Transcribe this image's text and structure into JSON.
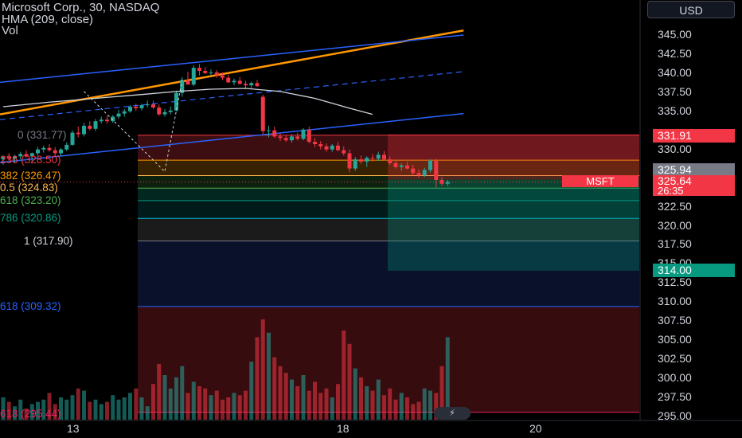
{
  "header": {
    "symbol_line": "Microsoft Corp., 30, NASDAQ",
    "indicator_1": "HMA (209, close)",
    "indicator_2": "Vol"
  },
  "currency_button": "USD",
  "price_axis": {
    "ticks": [
      "345.00",
      "342.50",
      "340.00",
      "337.50",
      "335.00",
      "330.00",
      "327.50",
      "322.50",
      "320.00",
      "317.50",
      "315.00",
      "312.50",
      "310.00",
      "307.50",
      "305.00",
      "302.50",
      "300.00",
      "297.50",
      "295.00"
    ]
  },
  "badges": {
    "upper": "331.91",
    "gray": "325.94",
    "last_price": "325.64",
    "countdown": "26:35",
    "lower": "314.00"
  },
  "symbol_badge": "MSFT",
  "fib_labels": [
    "0 (331.77)",
    "236 (328.50)",
    "382 (326.47)",
    "0.5 (324.83)",
    "618 (323.20)",
    "786 (320.86)",
    "1 (317.90)",
    "618 (309.32)",
    "618 (295.44)"
  ],
  "time_axis": [
    "13",
    "18",
    "20"
  ],
  "colors": {
    "up": "#26a69a",
    "down": "#f23645",
    "channel": "#2962ff",
    "channel_top": "#ff9800",
    "hma": "#d1d4dc"
  },
  "chart_data": {
    "type": "candlestick",
    "title": "Microsoft Corp., 30, NASDAQ",
    "ylim": [
      294.5,
      347.5
    ],
    "x_ticks": [
      "13",
      "18",
      "20"
    ],
    "candles": [
      [
        328.6,
        329.1,
        327.9,
        328.9
      ],
      [
        328.9,
        329.4,
        328.4,
        328.7
      ],
      [
        328.7,
        329.2,
        328.1,
        329.0
      ],
      [
        329.0,
        329.6,
        328.6,
        329.3
      ],
      [
        329.3,
        329.8,
        328.9,
        329.0
      ],
      [
        329.0,
        329.5,
        328.3,
        329.4
      ],
      [
        329.4,
        330.2,
        329.1,
        329.9
      ],
      [
        329.9,
        330.4,
        329.5,
        330.1
      ],
      [
        330.1,
        330.6,
        329.6,
        329.8
      ],
      [
        329.8,
        330.2,
        329.0,
        329.4
      ],
      [
        329.4,
        330.1,
        329.0,
        329.9
      ],
      [
        329.9,
        330.8,
        329.7,
        330.5
      ],
      [
        330.5,
        332.4,
        330.4,
        332.1
      ],
      [
        332.1,
        332.9,
        331.5,
        331.9
      ],
      [
        331.9,
        333.4,
        331.6,
        333.0
      ],
      [
        333.0,
        333.6,
        332.4,
        332.6
      ],
      [
        332.6,
        333.9,
        332.3,
        333.6
      ],
      [
        333.6,
        334.2,
        333.3,
        333.8
      ],
      [
        333.8,
        334.3,
        333.3,
        333.6
      ],
      [
        333.6,
        334.4,
        333.4,
        334.2
      ],
      [
        334.2,
        335.1,
        333.9,
        334.6
      ],
      [
        334.6,
        335.2,
        334.2,
        334.9
      ],
      [
        334.9,
        335.7,
        334.7,
        335.5
      ],
      [
        335.5,
        335.9,
        335.0,
        335.3
      ],
      [
        335.3,
        335.9,
        335.0,
        335.7
      ],
      [
        335.7,
        336.3,
        335.4,
        335.8
      ],
      [
        335.8,
        336.3,
        335.2,
        335.4
      ],
      [
        335.4,
        335.8,
        334.3,
        334.5
      ],
      [
        334.5,
        335.2,
        334.2,
        334.8
      ],
      [
        334.8,
        335.5,
        334.5,
        335.0
      ],
      [
        335.0,
        337.6,
        334.9,
        337.3
      ],
      [
        337.3,
        339.4,
        336.8,
        339.0
      ],
      [
        339.0,
        340.1,
        338.6,
        338.4
      ],
      [
        338.4,
        340.9,
        338.2,
        340.6
      ],
      [
        340.6,
        341.1,
        339.6,
        340.2
      ],
      [
        340.2,
        340.7,
        339.8,
        339.9
      ],
      [
        339.9,
        340.4,
        339.6,
        340.0
      ],
      [
        340.0,
        340.3,
        339.3,
        339.6
      ],
      [
        339.6,
        340.0,
        339.0,
        339.3
      ],
      [
        339.3,
        339.7,
        338.6,
        338.7
      ],
      [
        338.7,
        339.2,
        338.3,
        338.9
      ],
      [
        338.9,
        339.4,
        338.4,
        338.5
      ],
      [
        338.5,
        338.9,
        337.9,
        338.3
      ],
      [
        338.3,
        338.8,
        337.9,
        338.6
      ],
      [
        338.6,
        339.0,
        338.1,
        338.2
      ],
      [
        336.8,
        337.1,
        331.9,
        332.3
      ],
      [
        332.3,
        333.0,
        331.5,
        332.4
      ],
      [
        332.4,
        332.9,
        331.4,
        331.6
      ],
      [
        331.6,
        332.0,
        331.0,
        331.4
      ],
      [
        331.4,
        331.8,
        330.9,
        331.1
      ],
      [
        331.1,
        331.9,
        330.8,
        331.6
      ],
      [
        331.6,
        332.1,
        331.1,
        331.3
      ],
      [
        331.3,
        332.7,
        331.1,
        332.5
      ],
      [
        332.5,
        332.9,
        330.7,
        330.9
      ],
      [
        330.9,
        331.4,
        330.2,
        330.6
      ],
      [
        330.6,
        331.0,
        329.9,
        330.3
      ],
      [
        330.3,
        330.7,
        329.6,
        329.9
      ],
      [
        329.9,
        330.6,
        329.6,
        330.4
      ],
      [
        330.4,
        330.9,
        329.7,
        329.8
      ],
      [
        329.8,
        330.3,
        329.1,
        329.4
      ],
      [
        329.4,
        329.9,
        326.9,
        327.4
      ],
      [
        327.4,
        328.9,
        327.1,
        328.6
      ],
      [
        328.6,
        329.1,
        328.0,
        328.3
      ],
      [
        328.3,
        329.0,
        327.6,
        328.8
      ],
      [
        328.8,
        329.3,
        328.3,
        328.7
      ],
      [
        328.7,
        329.6,
        328.4,
        329.2
      ],
      [
        329.2,
        329.7,
        328.5,
        328.6
      ],
      [
        328.6,
        329.0,
        327.9,
        328.1
      ],
      [
        328.1,
        328.5,
        327.4,
        327.6
      ],
      [
        327.6,
        328.1,
        327.1,
        327.8
      ],
      [
        327.8,
        328.3,
        327.3,
        327.4
      ],
      [
        327.4,
        327.9,
        326.5,
        326.8
      ],
      [
        326.8,
        327.3,
        326.2,
        326.5
      ],
      [
        326.5,
        327.5,
        326.3,
        327.2
      ],
      [
        327.2,
        328.6,
        326.9,
        328.4
      ],
      [
        328.4,
        328.7,
        324.9,
        325.9
      ],
      [
        325.9,
        326.3,
        325.1,
        325.4
      ],
      [
        325.4,
        325.9,
        325.1,
        325.64
      ]
    ],
    "volume": [
      10,
      8,
      6,
      9,
      5,
      7,
      8,
      9,
      12,
      7,
      10,
      9,
      11,
      14,
      13,
      8,
      9,
      7,
      8,
      11,
      9,
      10,
      12,
      14,
      10,
      6,
      16,
      25,
      20,
      14,
      19,
      24,
      12,
      17,
      15,
      14,
      11,
      13,
      9,
      10,
      12,
      11,
      13,
      26,
      37,
      45,
      39,
      28,
      24,
      21,
      18,
      15,
      20,
      13,
      17,
      12,
      14,
      10,
      16,
      40,
      34,
      23,
      19,
      15,
      13,
      18,
      11,
      14,
      9,
      12,
      10,
      7,
      8,
      14,
      13,
      12,
      24,
      37
    ],
    "volume_ylim": [
      0,
      50
    ],
    "channel": {
      "top_line": [
        [
          0,
          334.5
        ],
        [
          77,
          345.5
        ]
      ],
      "upper": [
        [
          0,
          338.7
        ],
        [
          77,
          344.9
        ]
      ],
      "middle": [
        [
          0,
          333.8
        ],
        [
          77,
          340.1
        ]
      ],
      "lower": [
        [
          0,
          328.2
        ],
        [
          77,
          334.6
        ]
      ]
    },
    "hma": [
      [
        0,
        335.5
      ],
      [
        8,
        336.1
      ],
      [
        16,
        336.6
      ],
      [
        24,
        337.1
      ],
      [
        30,
        337.5
      ],
      [
        36,
        337.8
      ],
      [
        42,
        337.9
      ],
      [
        48,
        337.5
      ],
      [
        54,
        336.6
      ],
      [
        60,
        335.3
      ],
      [
        64,
        334.5
      ]
    ],
    "fib_levels": [
      331.77,
      328.5,
      326.47,
      324.83,
      323.2,
      320.86,
      317.9,
      309.32,
      295.44
    ],
    "last_price": 325.64,
    "zones": {
      "stop": [
        325.94,
        331.91
      ],
      "target": [
        314.0,
        325.94
      ]
    }
  }
}
